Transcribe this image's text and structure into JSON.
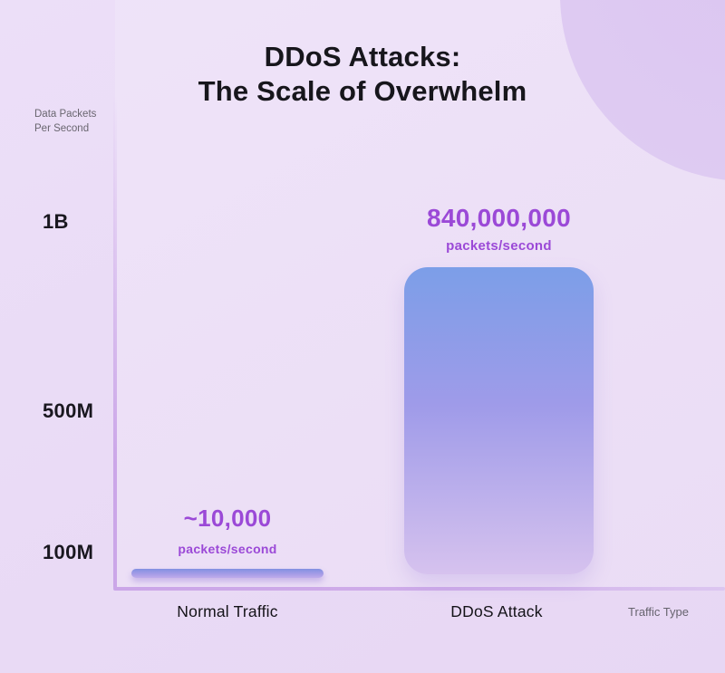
{
  "title": {
    "line1": "DDoS Attacks:",
    "line2": "The Scale of Overwhelm"
  },
  "axes": {
    "y_unit_line1": "Data Packets",
    "y_unit_line2": "Per Second",
    "y_ticks": [
      "1B",
      "500M",
      "100M"
    ],
    "x_label": "Traffic Type"
  },
  "bars": [
    {
      "category": "Normal Traffic",
      "value_label": "~10,000",
      "unit_label": "packets/second"
    },
    {
      "category": "DDoS Attack",
      "value_label": "840,000,000",
      "unit_label": "packets/second"
    }
  ],
  "colors": {
    "background": "#E9DAF5",
    "decorative_circle": "#DECBF2",
    "axis_line": "#CBA6E8",
    "accent_purple_text": "#9B49D7",
    "bar_gradient_top": "#7C9EE8",
    "bar_gradient_bottom": "#D6C2EE",
    "pill_gradient_top": "#8290E2",
    "pill_gradient_bottom": "#BFABEB",
    "title_text": "#17161C",
    "muted_text": "#69666F"
  },
  "chart_data": {
    "type": "bar",
    "categories": [
      "Normal Traffic",
      "DDoS Attack"
    ],
    "values": [
      10000,
      840000000
    ],
    "value_labels": [
      "~10,000 packets/second",
      "840,000,000 packets/second"
    ],
    "title": "DDoS Attacks: The Scale of Overwhelm",
    "xlabel": "Traffic Type",
    "ylabel": "Data Packets Per Second",
    "ytick_labels": [
      "1B",
      "500M",
      "100M"
    ],
    "ylim": [
      0,
      1000000000
    ],
    "grid": false,
    "legend": false,
    "bar_style": "rounded vertical bars, blue-to-lavender gradient, stylized (non-linear) scale"
  }
}
